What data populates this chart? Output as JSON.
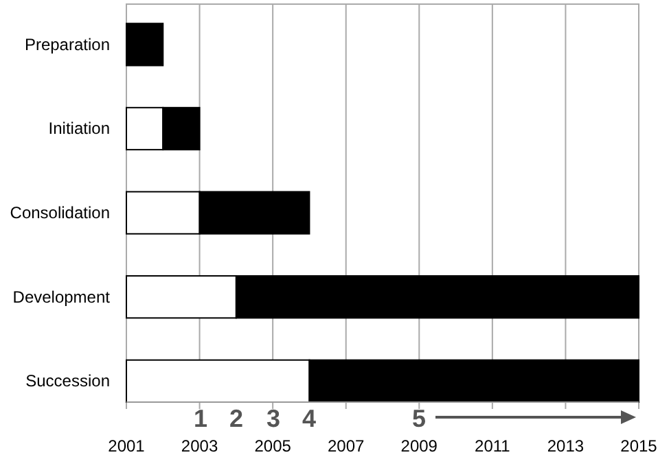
{
  "chart_data": {
    "type": "bar",
    "orientation": "horizontal",
    "categories": [
      "Preparation",
      "Initiation",
      "Consolidation",
      "Development",
      "Succession"
    ],
    "series": [
      {
        "color": "#ffffff",
        "base": [
          null,
          2001,
          2001,
          2001,
          2001
        ],
        "values": [
          null,
          1,
          2,
          3,
          5
        ]
      },
      {
        "color": "#000000",
        "base": [
          2001,
          2002,
          2003,
          2004,
          2006
        ],
        "values": [
          1,
          1,
          3,
          11,
          9
        ]
      }
    ],
    "xlim": [
      2001,
      2015
    ],
    "xticks": [
      2001,
      2003,
      2005,
      2007,
      2009,
      2011,
      2013,
      2015
    ],
    "grid": "x",
    "annotations": [
      "1",
      "2",
      "3",
      "4",
      "5"
    ]
  }
}
